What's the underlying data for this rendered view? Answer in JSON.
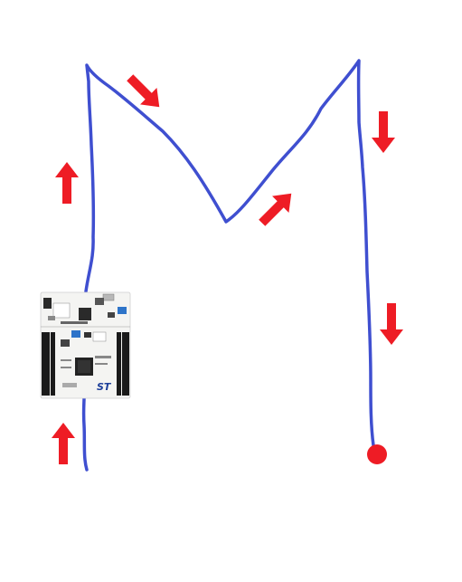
{
  "colors": {
    "background": "#ffffff",
    "path": "#3f4fd0",
    "arrow": "#ee1c25",
    "board_pcb": "#f4f4f2",
    "header_pins": "#1a1a1a",
    "logo": "#1d3f9a"
  },
  "path_shape": "M",
  "board": {
    "icon": "stm32-nucleo-board",
    "logo_text": "ST"
  },
  "arrows": [
    {
      "name": "arrow-up-bottom",
      "direction": "up"
    },
    {
      "name": "arrow-up-left",
      "direction": "up"
    },
    {
      "name": "arrow-down-right-1",
      "direction": "down-right"
    },
    {
      "name": "arrow-up-right",
      "direction": "up-right"
    },
    {
      "name": "arrow-down-upper",
      "direction": "down"
    },
    {
      "name": "arrow-down-lower",
      "direction": "down"
    }
  ],
  "endpoint": {
    "icon": "end-dot"
  }
}
